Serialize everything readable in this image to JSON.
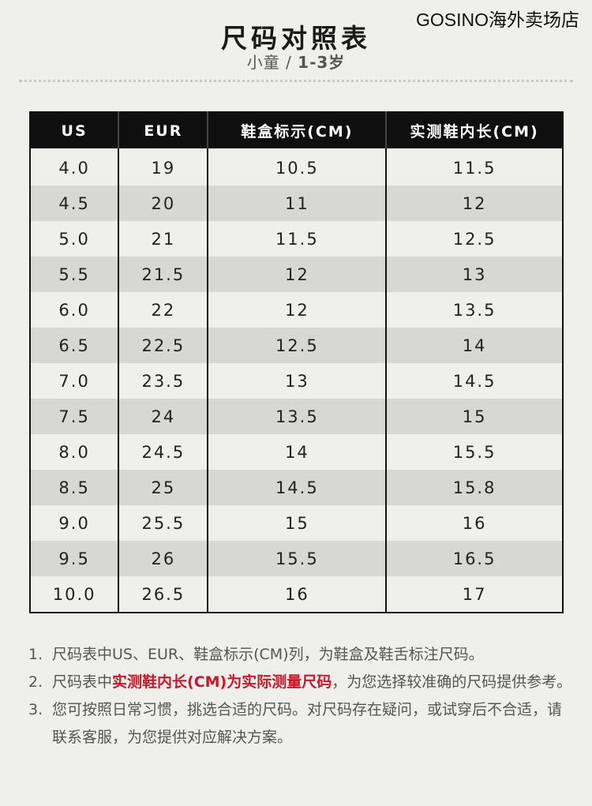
{
  "header": {
    "title": "尺码对照表",
    "subtitle_group": "小童",
    "subtitle_sep": " / ",
    "subtitle_range": "1-3岁",
    "watermark": "GOSINO海外卖场店"
  },
  "table": {
    "columns": [
      "US",
      "EUR",
      "鞋盒标示(CM)",
      "实测鞋内长(CM)"
    ],
    "rows": [
      [
        "4.0",
        "19",
        "10.5",
        "11.5"
      ],
      [
        "4.5",
        "20",
        "11",
        "12"
      ],
      [
        "5.0",
        "21",
        "11.5",
        "12.5"
      ],
      [
        "5.5",
        "21.5",
        "12",
        "13"
      ],
      [
        "6.0",
        "22",
        "12",
        "13.5"
      ],
      [
        "6.5",
        "22.5",
        "12.5",
        "14"
      ],
      [
        "7.0",
        "23.5",
        "13",
        "14.5"
      ],
      [
        "7.5",
        "24",
        "13.5",
        "15"
      ],
      [
        "8.0",
        "24.5",
        "14",
        "15.5"
      ],
      [
        "8.5",
        "25",
        "14.5",
        "15.8"
      ],
      [
        "9.0",
        "25.5",
        "15",
        "16"
      ],
      [
        "9.5",
        "26",
        "15.5",
        "16.5"
      ],
      [
        "10.0",
        "26.5",
        "16",
        "17"
      ]
    ],
    "stripe_color": "#d7d7d3",
    "header_bg": "#0f0f0f"
  },
  "notes": [
    {
      "num": "1.",
      "text": "尺码表中US、EUR、鞋盒标示(CM)列，为鞋盒及鞋舌标注尺码。"
    },
    {
      "num": "2.",
      "pre": "尺码表中",
      "highlight": "实测鞋内长(CM)为实际测量尺码",
      "post": "，为您选择较准确的尺码提供参考。"
    },
    {
      "num": "3.",
      "text": "您可按照日常习惯，挑选合适的尺码。对尺码存在疑问，或试穿后不合适，请联系客服，为您提供对应解决方案。"
    }
  ],
  "highlight_color": "#c8182a"
}
